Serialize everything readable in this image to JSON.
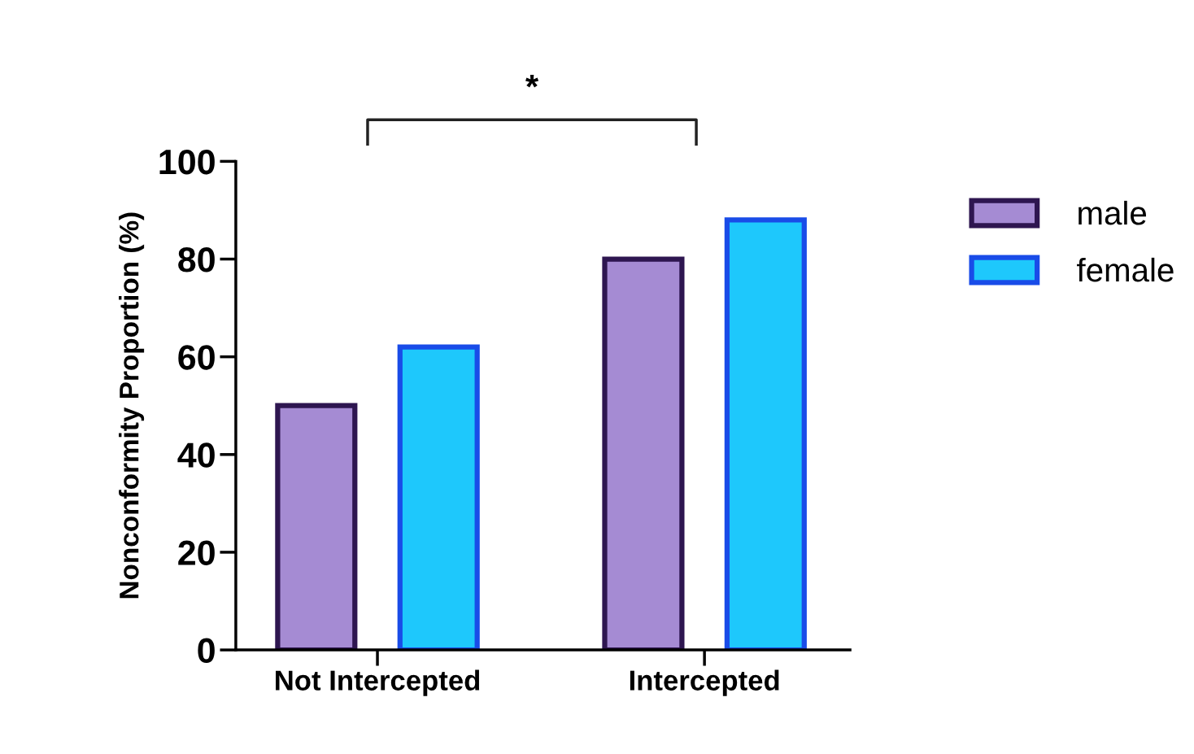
{
  "chart_data": {
    "type": "bar",
    "ylabel": "Nonconformity Proportion (%)",
    "categories": [
      "Not Intercepted",
      "Intercepted"
    ],
    "series": [
      {
        "name": "male",
        "color": "#a58bd3",
        "values": [
          50,
          80
        ]
      },
      {
        "name": "female",
        "color": "#1ec8fc",
        "values": [
          62,
          88
        ]
      }
    ],
    "ylim": [
      0,
      100
    ],
    "yticks": [
      0,
      20,
      40,
      60,
      80,
      100
    ],
    "annotations": [
      "*"
    ],
    "legend": "right",
    "grid": false
  }
}
